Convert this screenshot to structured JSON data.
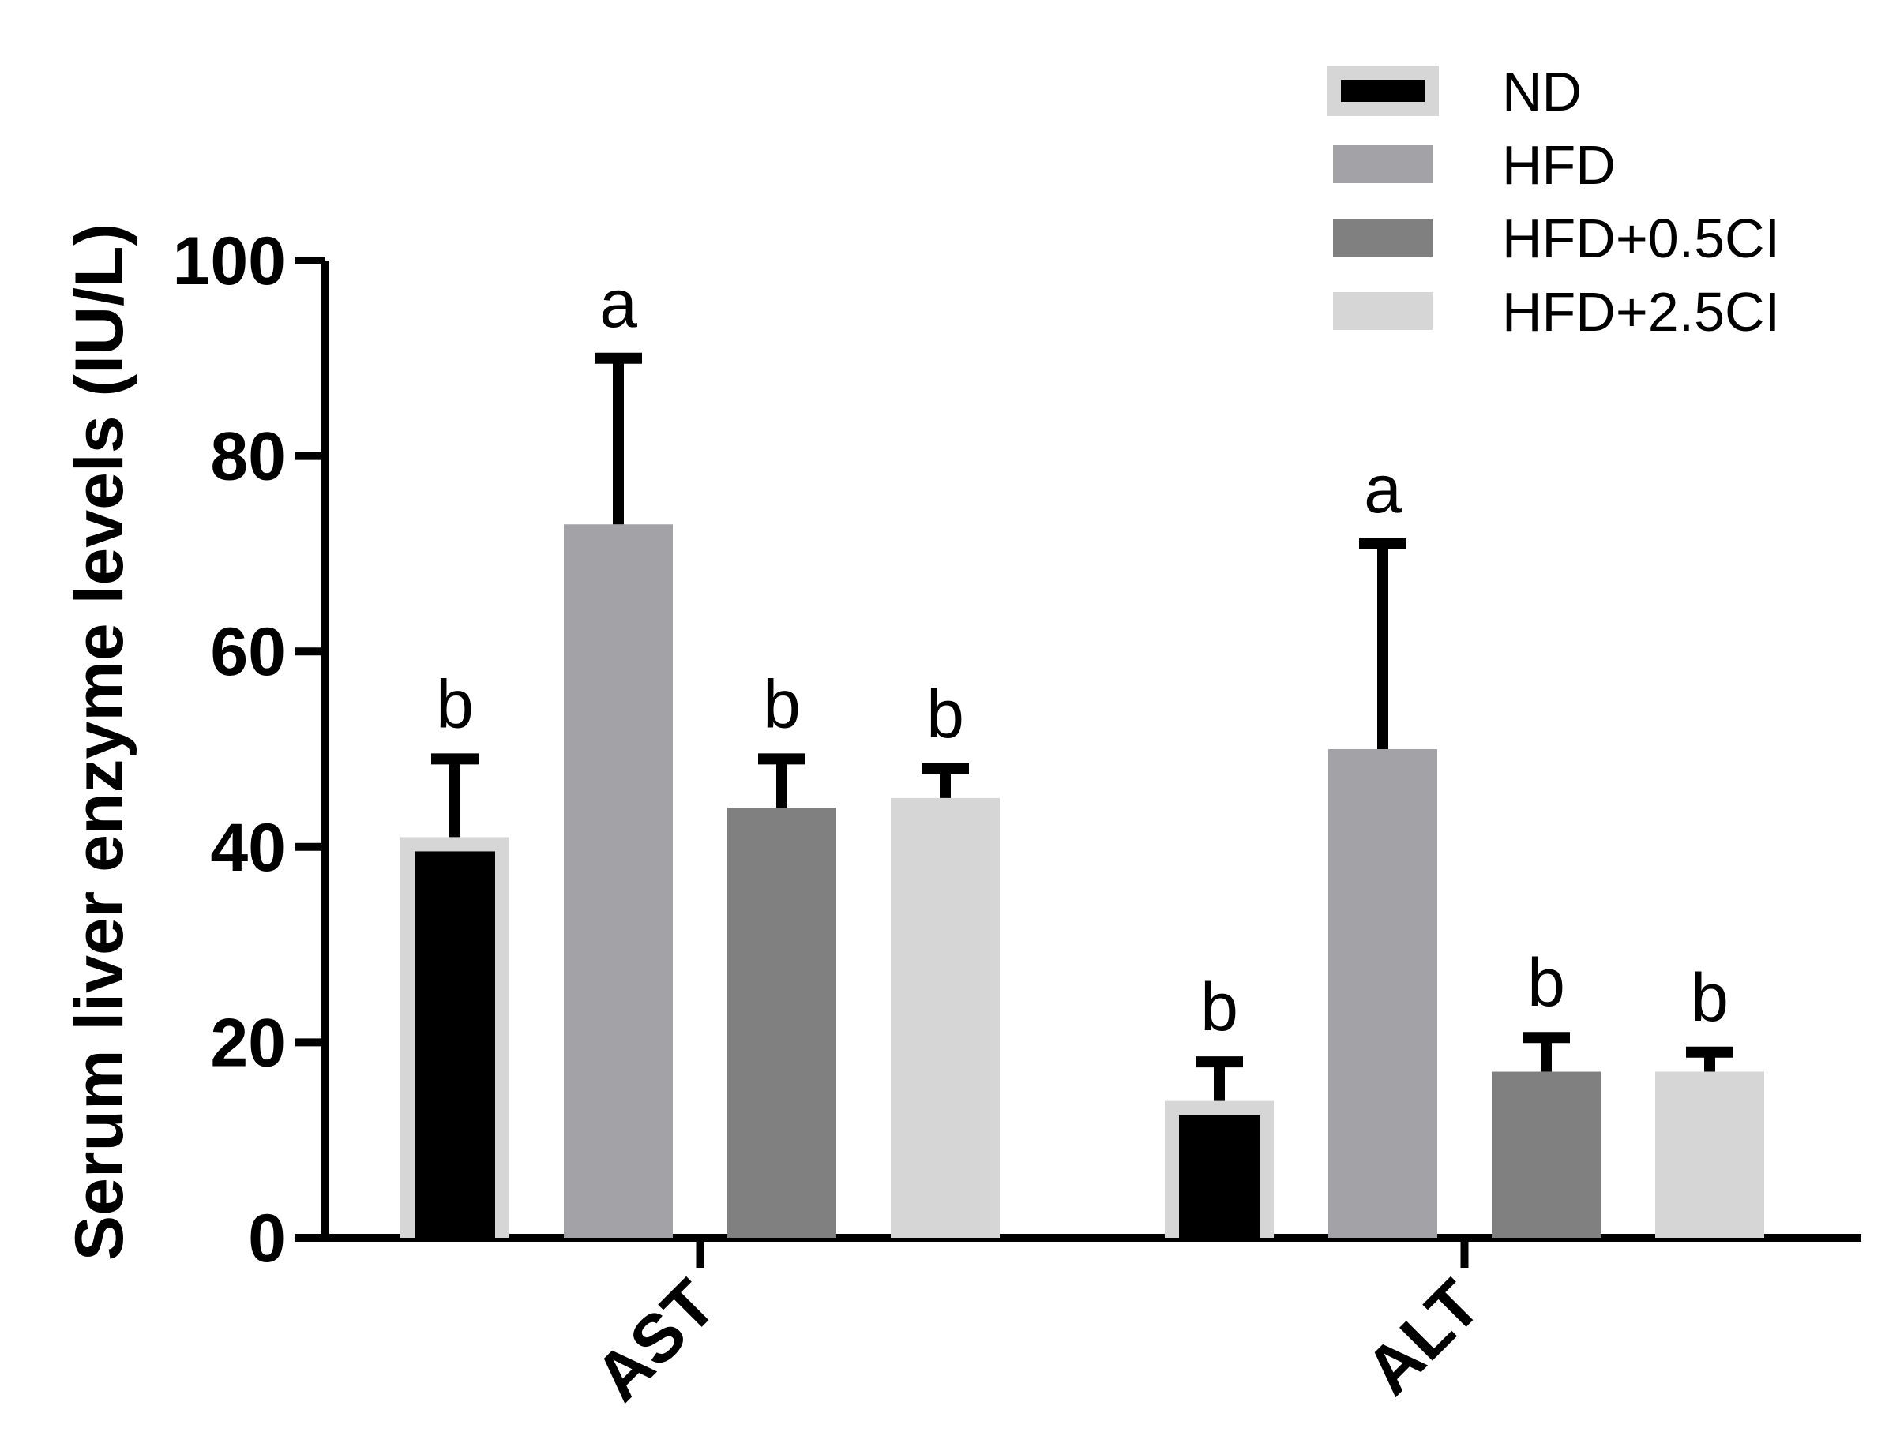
{
  "chart_data": {
    "type": "bar",
    "ylabel": "Serum liver enzyme levels (IU/L)",
    "xlabel": "",
    "ylim": [
      0,
      100
    ],
    "yticks": [
      "0",
      "20",
      "40",
      "60",
      "80",
      "100"
    ],
    "categories": [
      "AST",
      "ALT"
    ],
    "series": [
      {
        "name": "ND",
        "color": "#000000",
        "outline": "#d6d6d6",
        "values": [
          41,
          14
        ],
        "errors": [
          8,
          4
        ],
        "labels": [
          "b",
          "b"
        ]
      },
      {
        "name": "HFD",
        "color": "#a3a2a6",
        "values": [
          73,
          50
        ],
        "errors": [
          17,
          21
        ],
        "labels": [
          "a",
          "a"
        ]
      },
      {
        "name": "HFD+0.5CI",
        "color": "#808080",
        "values": [
          44,
          17
        ],
        "errors": [
          5,
          3.5
        ],
        "labels": [
          "b",
          "b"
        ]
      },
      {
        "name": "HFD+2.5CI",
        "color": "#d6d6d6",
        "values": [
          45,
          17
        ],
        "errors": [
          3,
          2
        ],
        "labels": [
          "b",
          "b"
        ]
      }
    ],
    "legend_position": "top-right",
    "grid": false
  }
}
